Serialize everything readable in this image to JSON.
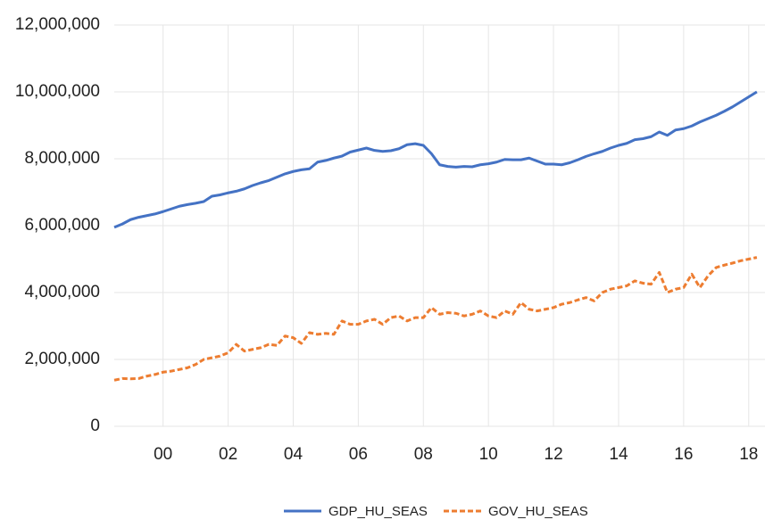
{
  "chart_data": {
    "type": "line",
    "x": [
      1999,
      1999.25,
      1999.5,
      1999.75,
      2000,
      2000.25,
      2000.5,
      2000.75,
      2001,
      2001.25,
      2001.5,
      2001.75,
      2002,
      2002.25,
      2002.5,
      2002.75,
      2003,
      2003.25,
      2003.5,
      2003.75,
      2004,
      2004.25,
      2004.5,
      2004.75,
      2005,
      2005.25,
      2005.5,
      2005.75,
      2006,
      2006.25,
      2006.5,
      2006.75,
      2007,
      2007.25,
      2007.5,
      2007.75,
      2008,
      2008.25,
      2008.5,
      2008.75,
      2009,
      2009.25,
      2009.5,
      2009.75,
      2010,
      2010.25,
      2010.5,
      2010.75,
      2011,
      2011.25,
      2011.5,
      2011.75,
      2012,
      2012.25,
      2012.5,
      2012.75,
      2013,
      2013.25,
      2013.5,
      2013.75,
      2014,
      2014.25,
      2014.5,
      2014.75,
      2015,
      2015.25,
      2015.5,
      2015.75,
      2016,
      2016.25,
      2016.5,
      2016.75,
      2017,
      2017.25,
      2017.5,
      2017.75,
      2018,
      2018.25,
      2018.5,
      2018.75
    ],
    "series": [
      {
        "name": "GDP_HU_SEAS",
        "color": "#4472c4",
        "dash": false,
        "values": [
          5950000,
          6050000,
          6180000,
          6250000,
          6300000,
          6350000,
          6420000,
          6500000,
          6580000,
          6630000,
          6670000,
          6720000,
          6880000,
          6920000,
          6980000,
          7030000,
          7100000,
          7200000,
          7280000,
          7350000,
          7450000,
          7550000,
          7620000,
          7670000,
          7700000,
          7900000,
          7950000,
          8020000,
          8080000,
          8200000,
          8260000,
          8320000,
          8250000,
          8220000,
          8240000,
          8300000,
          8420000,
          8450000,
          8400000,
          8150000,
          7820000,
          7770000,
          7750000,
          7770000,
          7760000,
          7820000,
          7850000,
          7900000,
          7980000,
          7970000,
          7970000,
          8020000,
          7930000,
          7840000,
          7840000,
          7820000,
          7880000,
          7970000,
          8070000,
          8150000,
          8220000,
          8320000,
          8400000,
          8460000,
          8570000,
          8600000,
          8660000,
          8800000,
          8700000,
          8860000,
          8900000,
          8980000,
          9100000,
          9200000,
          9300000,
          9420000,
          9550000,
          9700000,
          9850000,
          10000000
        ]
      },
      {
        "name": "GOV_HU_SEAS",
        "color": "#ed7d31",
        "dash": true,
        "values": [
          1380000,
          1430000,
          1420000,
          1430000,
          1500000,
          1550000,
          1620000,
          1650000,
          1700000,
          1750000,
          1850000,
          2000000,
          2050000,
          2100000,
          2200000,
          2450000,
          2250000,
          2300000,
          2350000,
          2450000,
          2420000,
          2700000,
          2650000,
          2480000,
          2800000,
          2750000,
          2780000,
          2750000,
          3150000,
          3050000,
          3050000,
          3150000,
          3200000,
          3050000,
          3250000,
          3300000,
          3150000,
          3250000,
          3250000,
          3550000,
          3350000,
          3400000,
          3380000,
          3300000,
          3350000,
          3450000,
          3300000,
          3250000,
          3450000,
          3350000,
          3700000,
          3500000,
          3450000,
          3500000,
          3550000,
          3650000,
          3700000,
          3780000,
          3850000,
          3750000,
          4000000,
          4100000,
          4150000,
          4200000,
          4350000,
          4280000,
          4250000,
          4600000,
          4000000,
          4100000,
          4150000,
          4550000,
          4150000,
          4500000,
          4750000,
          4820000,
          4880000,
          4950000,
          5000000,
          5050000
        ]
      }
    ],
    "xlim": [
      1999,
      2019
    ],
    "xticks": [
      {
        "value": 2000.5,
        "label": "00"
      },
      {
        "value": 2002.5,
        "label": "02"
      },
      {
        "value": 2004.5,
        "label": "04"
      },
      {
        "value": 2006.5,
        "label": "06"
      },
      {
        "value": 2008.5,
        "label": "08"
      },
      {
        "value": 2010.5,
        "label": "10"
      },
      {
        "value": 2012.5,
        "label": "12"
      },
      {
        "value": 2014.5,
        "label": "14"
      },
      {
        "value": 2016.5,
        "label": "16"
      },
      {
        "value": 2018.5,
        "label": "18"
      }
    ],
    "ylim": [
      0,
      12000000
    ],
    "yticks": [
      0,
      {
        "value": 2000000,
        "label": "2,000,000"
      },
      {
        "value": 4000000,
        "label": "4,000,000"
      },
      {
        "value": 6000000,
        "label": "6,000,000"
      },
      {
        "value": 8000000,
        "label": "8,000,000"
      },
      {
        "value": 10000000,
        "label": "10,000,000"
      },
      {
        "value": 12000000,
        "label": "12,000,000"
      }
    ],
    "grid": true,
    "legend": "bottom"
  }
}
